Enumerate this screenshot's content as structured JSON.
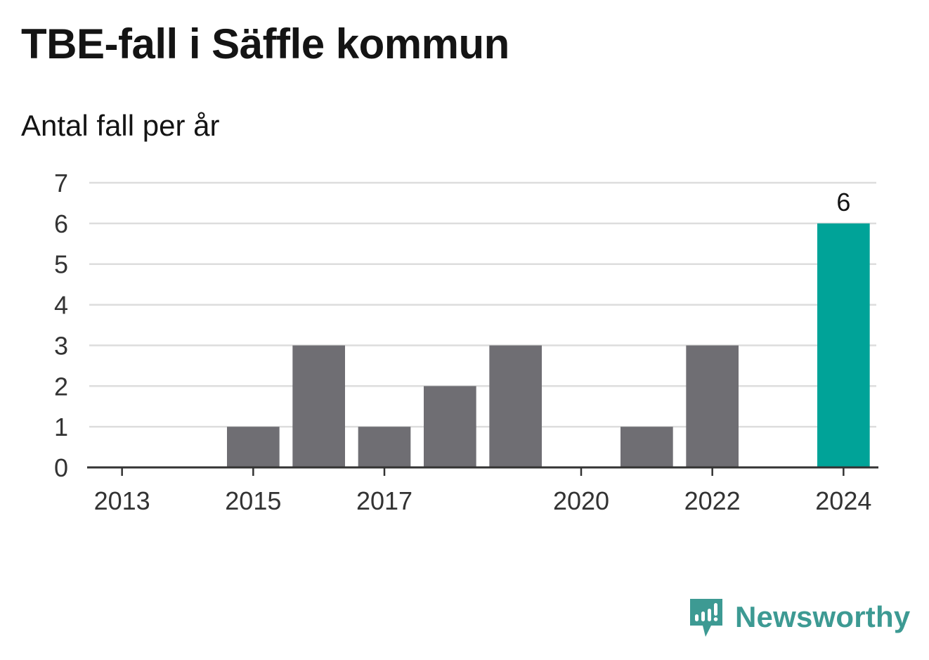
{
  "title": "TBE-fall i Säffle kommun",
  "subtitle": "Antal fall per år",
  "brand": {
    "name": "Newsworthy",
    "icon": "newsworthy-logo-icon",
    "color": "#3d9a93"
  },
  "colors": {
    "bar": "#6f6e73",
    "highlight": "#00a398",
    "grid": "#dddddd",
    "axis": "#333333"
  },
  "chart_data": {
    "type": "bar",
    "categories": [
      "2013",
      "2014",
      "2015",
      "2016",
      "2017",
      "2018",
      "2019",
      "2020",
      "2021",
      "2022",
      "2023",
      "2024"
    ],
    "values": [
      0,
      0,
      1,
      3,
      1,
      2,
      3,
      0,
      1,
      3,
      0,
      6
    ],
    "x_tick_labels": [
      "2013",
      "2015",
      "2017",
      "2020",
      "2022",
      "2024"
    ],
    "y_ticks": [
      0,
      1,
      2,
      3,
      4,
      5,
      6,
      7
    ],
    "ylim": [
      0,
      7
    ],
    "highlight": {
      "category": "2024",
      "label": "6"
    },
    "grid": true,
    "xlabel": "",
    "ylabel": ""
  }
}
